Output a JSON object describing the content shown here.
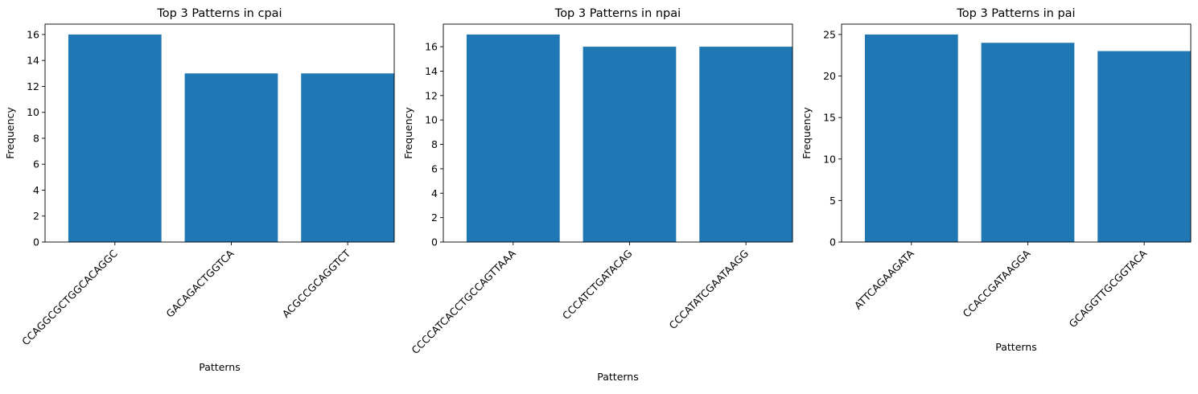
{
  "chart_data": [
    {
      "type": "bar",
      "title": "Top 3 Patterns in cpai",
      "xlabel": "Patterns",
      "ylabel": "Frequency",
      "categories": [
        "CCAGGCGCTGGCACAGGC",
        "GACAGACTGGTCA",
        "ACGCCGCAGGTCT"
      ],
      "values": [
        16,
        13,
        13
      ],
      "ylim": [
        0,
        16.8
      ],
      "yticks": [
        0,
        2,
        4,
        6,
        8,
        10,
        12,
        14,
        16
      ],
      "bar_color": "#1f77b4",
      "grid": false
    },
    {
      "type": "bar",
      "title": "Top 3 Patterns in npai",
      "xlabel": "Patterns",
      "ylabel": "Frequency",
      "categories": [
        "CCCCATCACCTGCCAGTTAAA",
        "CCCATCTGATACAG",
        "CCCATATCGAATAAGG"
      ],
      "values": [
        17,
        16,
        16
      ],
      "ylim": [
        0,
        17.85
      ],
      "yticks": [
        0,
        2,
        4,
        6,
        8,
        10,
        12,
        14,
        16
      ],
      "bar_color": "#1f77b4",
      "grid": false
    },
    {
      "type": "bar",
      "title": "Top 3 Patterns in pai",
      "xlabel": "Patterns",
      "ylabel": "Frequency",
      "categories": [
        "ATTCAGAAGATA",
        "CCACCGATAAGGA",
        "GCAGGTTGCGGTACA"
      ],
      "values": [
        25,
        24,
        23
      ],
      "ylim": [
        0,
        26.25
      ],
      "yticks": [
        0,
        5,
        10,
        15,
        20,
        25
      ],
      "bar_color": "#1f77b4",
      "grid": false
    }
  ]
}
